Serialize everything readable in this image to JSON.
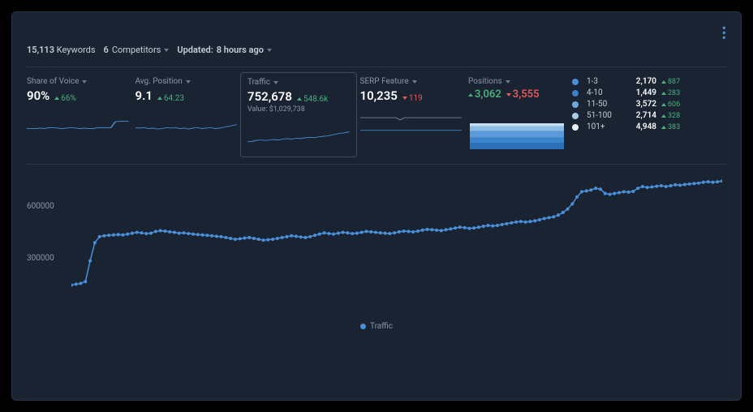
{
  "colors": {
    "primary": "#4a90d9",
    "up": "#4caf7a",
    "down": "#e85a5a",
    "grid": "#2a3548",
    "text_muted": "#8a96a8",
    "text": "#c5cdd8",
    "white": "#ffffff",
    "serp_line": "#9aa5b5"
  },
  "header": {
    "keywords_count": "15,113",
    "keywords_label": "Keywords",
    "competitors_count": "6",
    "competitors_label": "Competitors",
    "updated_label": "Updated:",
    "updated_value": "8 hours ago"
  },
  "metrics": {
    "share_of_voice": {
      "label": "Share of Voice",
      "value": "90%",
      "delta": "66%",
      "delta_dir": "up",
      "spark": [
        42,
        42,
        42,
        41,
        42,
        40,
        40,
        41,
        42,
        41,
        40,
        41,
        42,
        41,
        42,
        42,
        40,
        40,
        40,
        40,
        27,
        26,
        26,
        26
      ]
    },
    "avg_position": {
      "label": "Avg. Position",
      "value": "9.1",
      "delta": "64.23",
      "delta_dir": "up",
      "spark": [
        40,
        41,
        40,
        42,
        41,
        43,
        42,
        40,
        41,
        40,
        42,
        41,
        43,
        41,
        40,
        42,
        41,
        40,
        42,
        41,
        39,
        37,
        35,
        33
      ]
    },
    "traffic": {
      "label": "Traffic",
      "value": "752,678",
      "delta": "548.6k",
      "delta_dir": "up",
      "sub_label": "Value:",
      "sub_value": "$1,029,738",
      "spark": [
        48,
        47,
        45,
        44,
        45,
        44,
        43,
        44,
        42,
        41,
        42,
        40,
        41,
        39,
        38,
        39,
        37,
        36,
        35,
        33,
        31,
        29,
        28,
        26
      ]
    },
    "serp_feature": {
      "label": "SERP Feature",
      "value": "10,235",
      "delta": "119",
      "delta_dir": "down",
      "spark_top": [
        18,
        18,
        18,
        18,
        18,
        18,
        18,
        18,
        18,
        23,
        18,
        18,
        18,
        18,
        18,
        18,
        18,
        18,
        18,
        18,
        18,
        18,
        18,
        18
      ],
      "spark_bottom": [
        46,
        46,
        46,
        46,
        46,
        46,
        46,
        46,
        46,
        46,
        46,
        46,
        46,
        46,
        46,
        46,
        46,
        46,
        46,
        46,
        46,
        46,
        46,
        46
      ]
    },
    "positions": {
      "label": "Positions",
      "delta_up": "3,062",
      "delta_down": "3,555",
      "area_colors": [
        "#2a6fb8",
        "#3a84cc",
        "#5a9ad9",
        "#8abce5",
        "#c5dff2"
      ],
      "area_heights": [
        0.25,
        0.2,
        0.25,
        0.18,
        0.12
      ]
    }
  },
  "positions_legend": [
    {
      "label": "1-3",
      "count": "2,170",
      "delta": "887",
      "dir": "up",
      "color": "#4a90d9"
    },
    {
      "label": "4-10",
      "count": "1,449",
      "delta": "283",
      "dir": "up",
      "color": "#3a7fc7"
    },
    {
      "label": "11-50",
      "count": "3,572",
      "delta": "606",
      "dir": "up",
      "color": "#6fa8db"
    },
    {
      "label": "51-100",
      "count": "2,714",
      "delta": "328",
      "dir": "up",
      "color": "#a8cce8"
    },
    {
      "label": "101+",
      "count": "4,948",
      "delta": "383",
      "dir": "up",
      "color": "#e8eff7"
    }
  ],
  "main_chart": {
    "legend_label": "Traffic",
    "y_ticks": [
      {
        "v": 300000,
        "label": "300000"
      },
      {
        "v": 600000,
        "label": "600000"
      }
    ],
    "ylim": [
      0,
      800000
    ],
    "line_color": "#4a90d9",
    "marker_size": 2,
    "data": [
      150000,
      155000,
      160000,
      170000,
      290000,
      395000,
      430000,
      435000,
      438000,
      440000,
      442000,
      440000,
      445000,
      450000,
      455000,
      452000,
      448000,
      450000,
      460000,
      465000,
      462000,
      458000,
      455000,
      450000,
      452000,
      448000,
      445000,
      442000,
      440000,
      438000,
      435000,
      432000,
      430000,
      425000,
      420000,
      415000,
      418000,
      422000,
      425000,
      420000,
      415000,
      410000,
      412000,
      415000,
      420000,
      425000,
      430000,
      435000,
      432000,
      428000,
      425000,
      430000,
      438000,
      445000,
      452000,
      448000,
      445000,
      450000,
      455000,
      452000,
      448000,
      450000,
      455000,
      460000,
      458000,
      455000,
      452000,
      450000,
      448000,
      452000,
      458000,
      462000,
      460000,
      458000,
      462000,
      468000,
      472000,
      470000,
      468000,
      465000,
      470000,
      475000,
      480000,
      485000,
      482000,
      478000,
      480000,
      485000,
      490000,
      495000,
      492000,
      495000,
      500000,
      505000,
      510000,
      515000,
      518000,
      515000,
      518000,
      522000,
      528000,
      535000,
      540000,
      545000,
      555000,
      570000,
      590000,
      620000,
      660000,
      690000,
      695000,
      700000,
      710000,
      705000,
      680000,
      675000,
      680000,
      685000,
      690000,
      688000,
      692000,
      710000,
      720000,
      715000,
      718000,
      722000,
      725000,
      720000,
      725000,
      730000,
      728000,
      732000,
      735000,
      738000,
      740000,
      745000,
      748000,
      745000,
      748000,
      752000
    ]
  }
}
